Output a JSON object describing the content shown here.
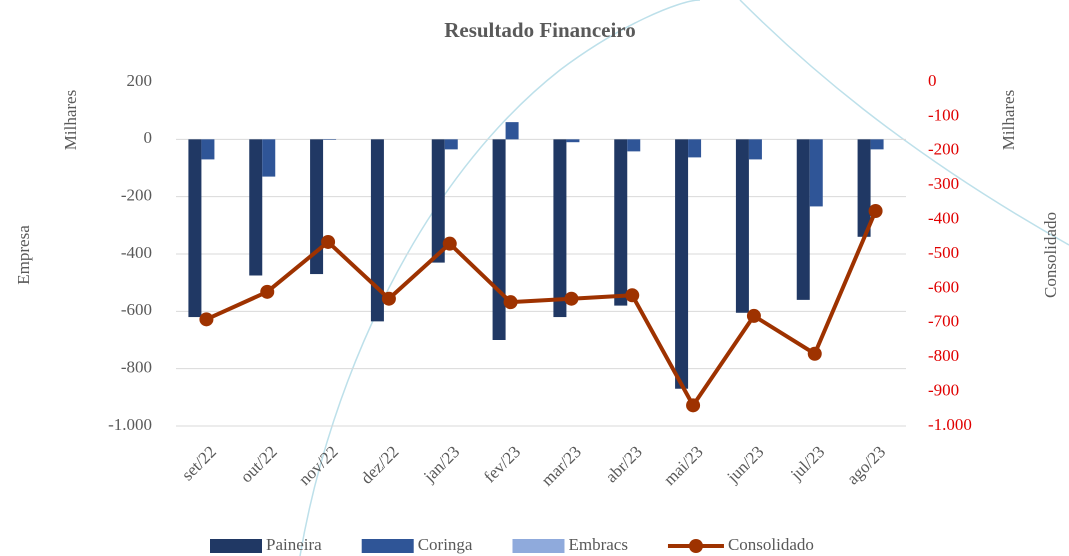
{
  "chart_data": {
    "type": "bar",
    "title": "Resultado Financeiro",
    "y_label": "Empresa",
    "y_unit": "Milhares",
    "y2_label": "Consolidado",
    "y2_unit": "Milhares",
    "categories": [
      "set/22",
      "out/22",
      "nov/22",
      "dez/22",
      "jan/23",
      "fev/23",
      "mar/23",
      "abr/23",
      "mai/23",
      "jun/23",
      "jul/23",
      "ago/23"
    ],
    "series": [
      {
        "name": "Paineira",
        "color": "#203864",
        "type": "bar",
        "values": [
          -620,
          -475,
          -470,
          -635,
          -430,
          -700,
          -620,
          -580,
          -870,
          -605,
          -560,
          -340
        ]
      },
      {
        "name": "Coringa",
        "color": "#2f5597",
        "type": "bar",
        "values": [
          -70,
          -130,
          -2,
          0,
          -35,
          60,
          -10,
          -42,
          -63,
          -70,
          -234,
          -35
        ]
      },
      {
        "name": "Embracs",
        "color": "#8faadc",
        "type": "bar",
        "values": [
          0,
          0,
          0,
          0,
          0,
          0,
          0,
          0,
          0,
          0,
          0,
          0
        ]
      },
      {
        "name": "Consolidado",
        "color": "#9e3200",
        "type": "line",
        "axis": "y2",
        "values": [
          -690,
          -610,
          -465,
          -630,
          -470,
          -640,
          -630,
          -620,
          -940,
          -680,
          -790,
          -375
        ]
      }
    ],
    "ylim": [
      -1000,
      200
    ],
    "yticks": [
      {
        "value": -1000,
        "label": "-1.000"
      },
      -800,
      -600,
      -400,
      -200,
      0,
      200
    ],
    "y2lim": [
      -1000,
      0
    ],
    "y2ticks": [
      {
        "value": -1000,
        "label": "-1.000"
      },
      -900,
      -800,
      -700,
      -600,
      -500,
      -400,
      -300,
      -200,
      -100,
      0
    ],
    "y2tick_color": "#e00000",
    "grid": true,
    "legend": "bottom"
  }
}
